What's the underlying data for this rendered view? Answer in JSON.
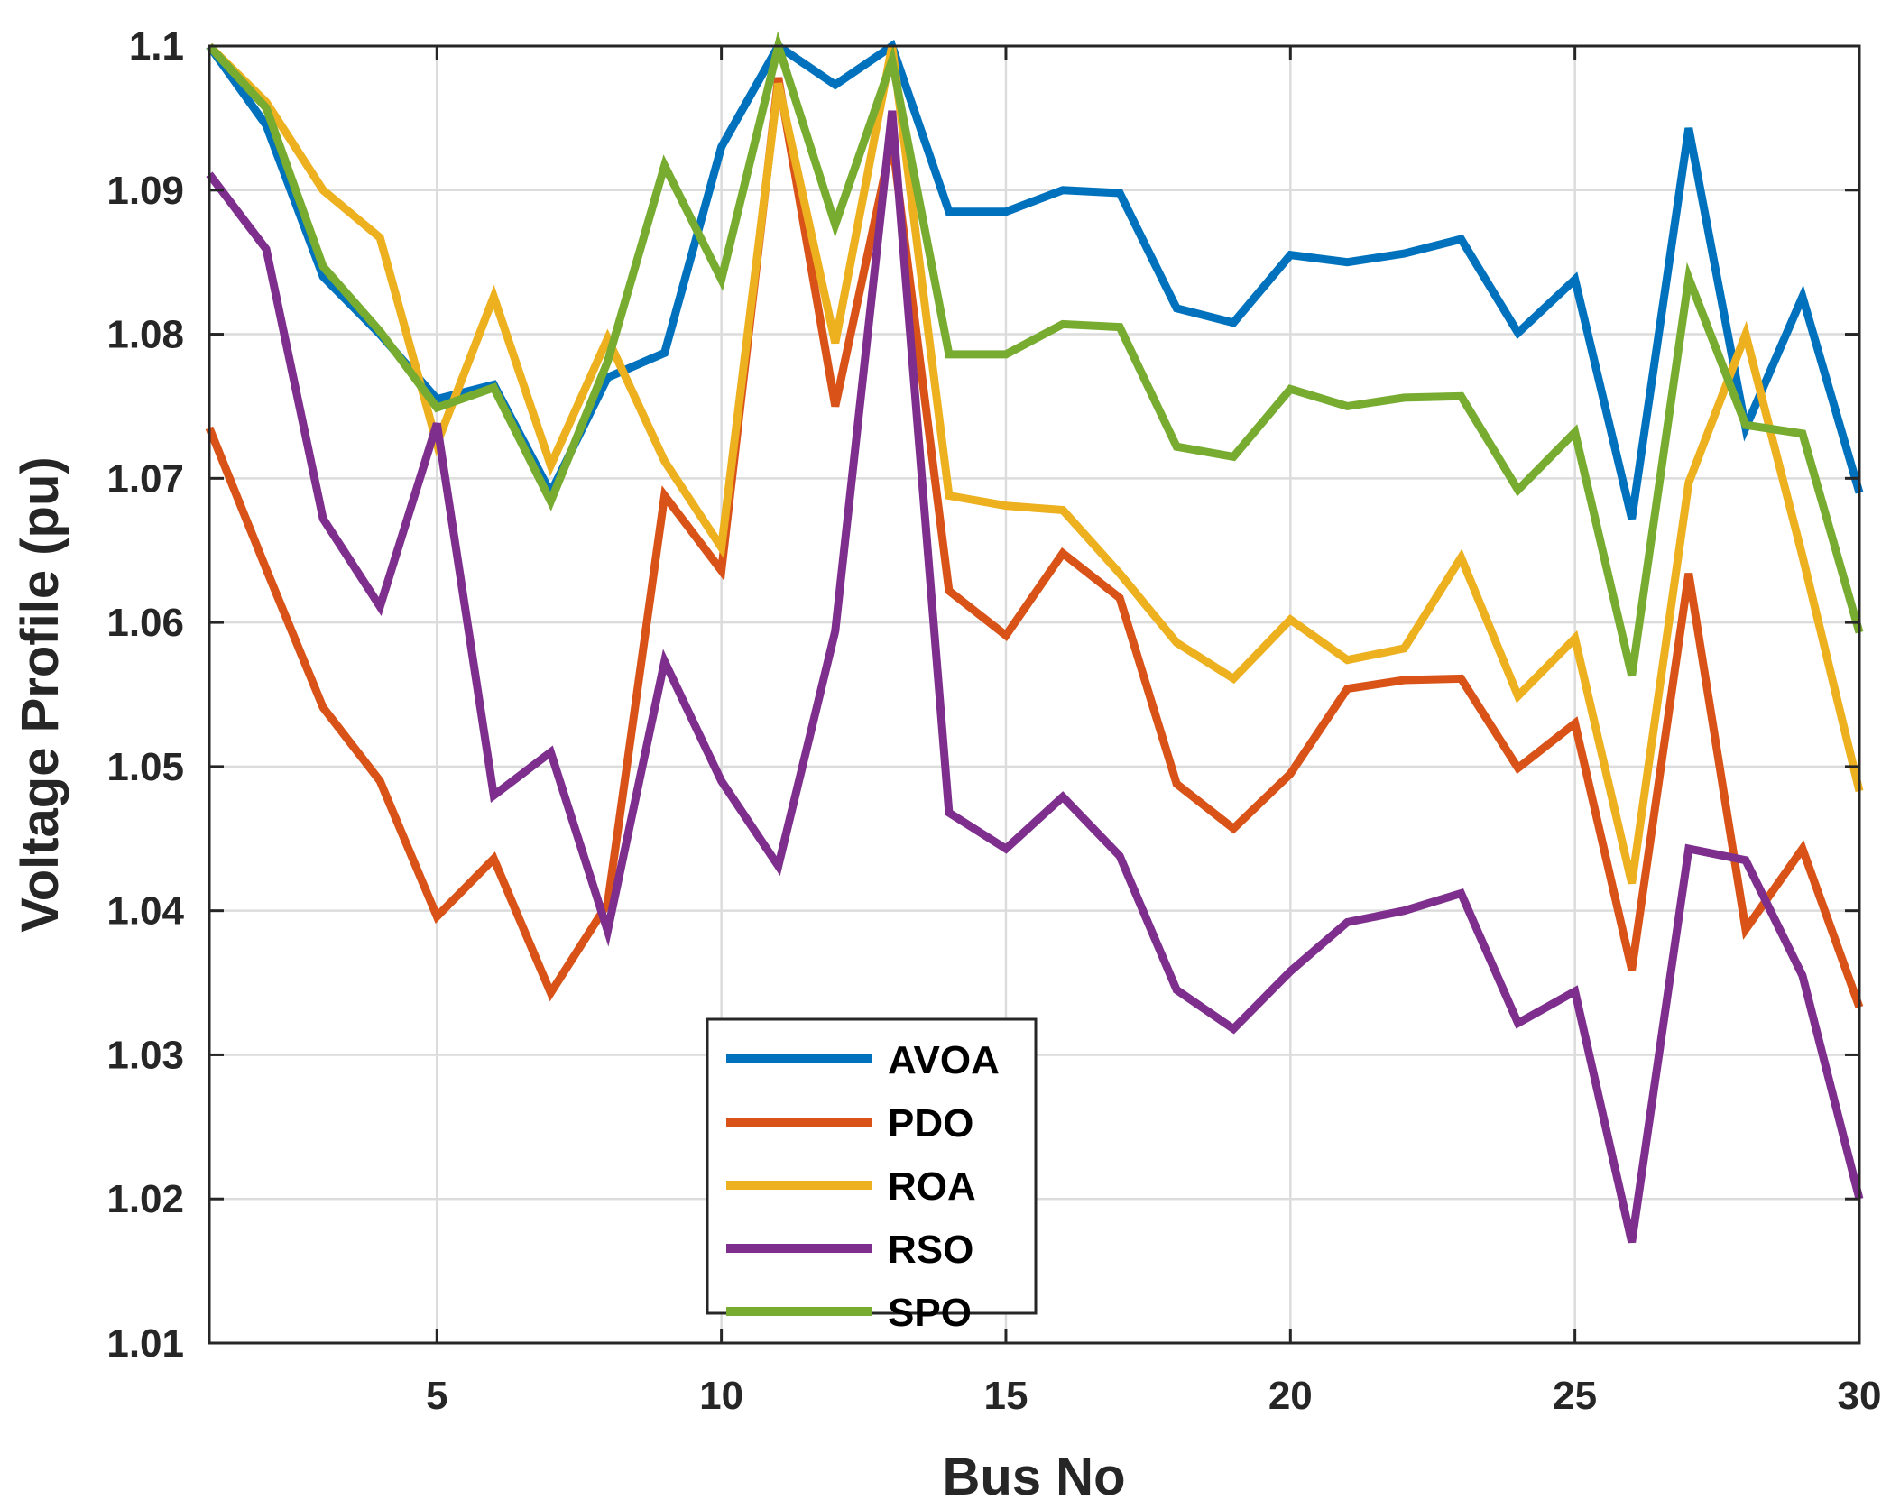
{
  "chart_data": {
    "type": "line",
    "title": "",
    "xlabel": "Bus No",
    "ylabel": "Voltage Profile (pu)",
    "xlim": [
      1,
      30
    ],
    "ylim": [
      1.01,
      1.1
    ],
    "xticks": [
      5,
      10,
      15,
      20,
      25,
      30
    ],
    "xtick_labels": [
      "5",
      "10",
      "15",
      "20",
      "25",
      "30"
    ],
    "yticks": [
      1.01,
      1.02,
      1.03,
      1.04,
      1.05,
      1.06,
      1.07,
      1.08,
      1.09,
      1.1
    ],
    "ytick_labels": [
      "1.01",
      "1.02",
      "1.03",
      "1.04",
      "1.05",
      "1.06",
      "1.07",
      "1.08",
      "1.09",
      "1.1"
    ],
    "grid": true,
    "legend_position": "bottom-center",
    "x": [
      1,
      2,
      3,
      4,
      5,
      6,
      7,
      8,
      9,
      10,
      11,
      12,
      13,
      14,
      15,
      16,
      17,
      18,
      19,
      20,
      21,
      22,
      23,
      24,
      25,
      26,
      27,
      28,
      29,
      30
    ],
    "series": [
      {
        "name": "AVOA",
        "color": "#0072BD",
        "values": [
          1.1,
          1.0945,
          1.084,
          1.08,
          1.0755,
          1.0765,
          1.069,
          1.077,
          1.0787,
          1.093,
          1.1,
          1.0973,
          1.1,
          1.0885,
          1.0885,
          1.09,
          1.0898,
          1.0818,
          1.0808,
          1.0855,
          1.085,
          1.0856,
          1.0866,
          1.0801,
          1.0838,
          1.0672,
          1.0943,
          1.0735,
          1.0826,
          1.069
        ]
      },
      {
        "name": "PDO",
        "color": "#D95319",
        "values": [
          1.0735,
          1.0637,
          1.0541,
          1.049,
          1.0396,
          1.0436,
          1.0343,
          1.0405,
          1.0688,
          1.0636,
          1.0978,
          1.075,
          1.0935,
          1.0622,
          1.0591,
          1.0648,
          1.0617,
          1.0488,
          1.0457,
          1.0495,
          1.0554,
          1.056,
          1.0561,
          1.0499,
          1.053,
          1.0359,
          1.0634,
          1.0387,
          1.0443,
          1.0333
        ]
      },
      {
        "name": "ROA",
        "color": "#EDB120",
        "values": [
          1.1,
          1.0961,
          1.09,
          1.0867,
          1.0724,
          1.0826,
          1.0709,
          1.0797,
          1.0712,
          1.0652,
          1.0974,
          1.0794,
          1.1,
          1.0688,
          1.0681,
          1.0678,
          1.0634,
          1.0586,
          1.0561,
          1.0602,
          1.0574,
          1.0582,
          1.0645,
          1.0549,
          1.0589,
          1.0419,
          1.0697,
          1.08,
          1.0646,
          1.0483
        ]
      },
      {
        "name": "RSO",
        "color": "#7E2F8E",
        "values": [
          1.0911,
          1.0859,
          1.0672,
          1.0611,
          1.0738,
          1.048,
          1.051,
          1.0386,
          1.0573,
          1.049,
          1.0431,
          1.0594,
          1.0955,
          1.0468,
          1.0443,
          1.0479,
          1.0438,
          1.0345,
          1.0318,
          1.0358,
          1.0392,
          1.04,
          1.0412,
          1.0322,
          1.0344,
          1.017,
          1.0443,
          1.0435,
          1.0355,
          1.02
        ]
      },
      {
        "name": "SPO",
        "color": "#77AC30",
        "values": [
          1.1,
          1.0957,
          1.0847,
          1.0802,
          1.0749,
          1.0763,
          1.0684,
          1.0781,
          1.0917,
          1.0838,
          1.1,
          1.0876,
          1.099,
          1.0786,
          1.0786,
          1.0807,
          1.0805,
          1.0722,
          1.0715,
          1.0762,
          1.075,
          1.0756,
          1.0757,
          1.0692,
          1.0732,
          1.0563,
          1.0839,
          1.0737,
          1.0731,
          1.0593
        ]
      }
    ]
  }
}
